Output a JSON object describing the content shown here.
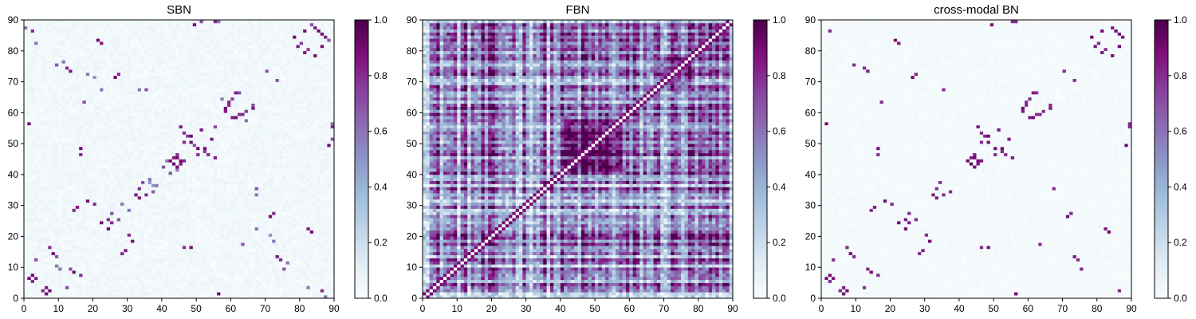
{
  "colormap": {
    "name": "BuPu",
    "stops": [
      [
        0.0,
        "#f7fcfd"
      ],
      [
        0.125,
        "#e0ecf4"
      ],
      [
        0.25,
        "#bfd3e6"
      ],
      [
        0.375,
        "#9ebcda"
      ],
      [
        0.5,
        "#8c96c6"
      ],
      [
        0.625,
        "#8c6bb1"
      ],
      [
        0.75,
        "#88419d"
      ],
      [
        0.875,
        "#810f7c"
      ],
      [
        1.0,
        "#4d004b"
      ]
    ]
  },
  "chart_data": [
    {
      "type": "heatmap",
      "title": "SBN",
      "xlim": [
        0,
        90
      ],
      "ylim": [
        0,
        90
      ],
      "xticks": [
        "0",
        "10",
        "20",
        "30",
        "40",
        "50",
        "60",
        "70",
        "80",
        "90"
      ],
      "yticks": [
        "0",
        "10",
        "20",
        "30",
        "40",
        "50",
        "60",
        "70",
        "80",
        "90"
      ],
      "colorbar": {
        "range": [
          0,
          1
        ],
        "ticks": [
          "0.0",
          "0.2",
          "0.4",
          "0.6",
          "0.8",
          "1.0"
        ]
      },
      "grid_size": 90,
      "pattern": "sparse-symmetric",
      "background_value": 0.02,
      "cells": [
        [
          2,
          7,
          0.9
        ],
        [
          3,
          6,
          0.85
        ],
        [
          5,
          2,
          0.8
        ],
        [
          6,
          1,
          0.9
        ],
        [
          8,
          14,
          0.9
        ],
        [
          9,
          13,
          0.7
        ],
        [
          7,
          16,
          0.8
        ],
        [
          10,
          9,
          0.6
        ],
        [
          12,
          3,
          0.7
        ],
        [
          14,
          28,
          0.8
        ],
        [
          15,
          29,
          0.85
        ],
        [
          16,
          48,
          0.9
        ],
        [
          16,
          46,
          0.8
        ],
        [
          17,
          63,
          0.7
        ],
        [
          18,
          72,
          0.6
        ],
        [
          20,
          71,
          0.5
        ],
        [
          21,
          83,
          0.9
        ],
        [
          22,
          82,
          0.85
        ],
        [
          24,
          22,
          0.9
        ],
        [
          25,
          24,
          0.8
        ],
        [
          27,
          25,
          0.7
        ],
        [
          28,
          30,
          0.6
        ],
        [
          30,
          20,
          0.8
        ],
        [
          31,
          18,
          0.9
        ],
        [
          32,
          33,
          0.85
        ],
        [
          33,
          35,
          0.8
        ],
        [
          34,
          37,
          0.7
        ],
        [
          36,
          38,
          0.6
        ],
        [
          37,
          36,
          0.5
        ],
        [
          40,
          42,
          0.7
        ],
        [
          42,
          44,
          0.9
        ],
        [
          43,
          43,
          0.95
        ],
        [
          44,
          45,
          0.9
        ],
        [
          45,
          43,
          0.85
        ],
        [
          46,
          44,
          0.8
        ],
        [
          44,
          41,
          0.6
        ],
        [
          45,
          55,
          0.85
        ],
        [
          46,
          53,
          0.8
        ],
        [
          47,
          52,
          0.75
        ],
        [
          48,
          50,
          0.9
        ],
        [
          49,
          49,
          0.7
        ],
        [
          50,
          46,
          0.8
        ],
        [
          52,
          48,
          0.9
        ],
        [
          54,
          51,
          0.85
        ],
        [
          55,
          55,
          0.7
        ],
        [
          56,
          1,
          0.9
        ],
        [
          58,
          60,
          0.85
        ],
        [
          59,
          62,
          0.8
        ],
        [
          60,
          64,
          0.75
        ],
        [
          61,
          58,
          0.9
        ],
        [
          62,
          66,
          0.7
        ],
        [
          63,
          59,
          0.8
        ],
        [
          64,
          57,
          0.6
        ],
        [
          66,
          61,
          0.85
        ],
        [
          67,
          22,
          0.6
        ],
        [
          70,
          73,
          0.7
        ],
        [
          71,
          26,
          0.9
        ],
        [
          72,
          27,
          0.8
        ],
        [
          73,
          13,
          0.85
        ],
        [
          74,
          12,
          0.8
        ],
        [
          75,
          9,
          0.7
        ],
        [
          76,
          11,
          0.6
        ],
        [
          78,
          84,
          0.9
        ],
        [
          79,
          81,
          0.85
        ],
        [
          80,
          82,
          0.8
        ],
        [
          81,
          86,
          0.9
        ],
        [
          82,
          80,
          0.75
        ],
        [
          83,
          88,
          0.7
        ],
        [
          84,
          87,
          0.8
        ],
        [
          85,
          86,
          0.6
        ],
        [
          86,
          85,
          0.9
        ],
        [
          87,
          84,
          0.85
        ],
        [
          88,
          49,
          0.9
        ],
        [
          89,
          55,
          0.8
        ],
        [
          89,
          51,
          0.7
        ],
        [
          82,
          3,
          0.6
        ],
        [
          86,
          2,
          0.8
        ],
        [
          87,
          0,
          0.6
        ],
        [
          35,
          67,
          0.7
        ],
        [
          33,
          67,
          0.6
        ],
        [
          56,
          89,
          0.6
        ]
      ]
    },
    {
      "type": "heatmap",
      "title": "FBN",
      "xlim": [
        0,
        90
      ],
      "ylim": [
        0,
        90
      ],
      "xticks": [
        "0",
        "10",
        "20",
        "30",
        "40",
        "50",
        "60",
        "70",
        "80",
        "90"
      ],
      "yticks": [
        "0",
        "10",
        "20",
        "30",
        "40",
        "50",
        "60",
        "70",
        "80",
        "90"
      ],
      "colorbar": {
        "range": [
          0,
          1
        ],
        "ticks": [
          "0.0",
          "0.2",
          "0.4",
          "0.6",
          "0.8",
          "1.0"
        ]
      },
      "grid_size": 90,
      "pattern": "dense-symmetric",
      "diagonal_value": 0.0,
      "off_diagonal_value": 0.9
    },
    {
      "type": "heatmap",
      "title": "cross-modal BN",
      "xlim": [
        0,
        90
      ],
      "ylim": [
        0,
        90
      ],
      "xticks": [
        "0",
        "10",
        "20",
        "30",
        "40",
        "50",
        "60",
        "70",
        "80",
        "90"
      ],
      "yticks": [
        "0",
        "10",
        "20",
        "30",
        "40",
        "50",
        "60",
        "70",
        "80",
        "90"
      ],
      "colorbar": {
        "range": [
          0,
          1
        ],
        "ticks": [
          "0.0",
          "0.2",
          "0.4",
          "0.6",
          "0.8",
          "1.0"
        ]
      },
      "grid_size": 90,
      "pattern": "sparse-symmetric",
      "background_value": 0.01,
      "cells": [
        [
          2,
          7,
          0.9
        ],
        [
          3,
          6,
          0.85
        ],
        [
          5,
          2,
          0.8
        ],
        [
          6,
          1,
          0.9
        ],
        [
          8,
          14,
          0.9
        ],
        [
          9,
          13,
          0.8
        ],
        [
          7,
          16,
          0.8
        ],
        [
          12,
          3,
          0.8
        ],
        [
          14,
          28,
          0.8
        ],
        [
          15,
          29,
          0.85
        ],
        [
          16,
          48,
          0.9
        ],
        [
          16,
          46,
          0.8
        ],
        [
          17,
          63,
          0.8
        ],
        [
          21,
          83,
          0.9
        ],
        [
          22,
          82,
          0.85
        ],
        [
          24,
          22,
          0.9
        ],
        [
          25,
          24,
          0.85
        ],
        [
          27,
          25,
          0.8
        ],
        [
          30,
          20,
          0.8
        ],
        [
          31,
          18,
          0.9
        ],
        [
          32,
          33,
          0.85
        ],
        [
          33,
          35,
          0.8
        ],
        [
          34,
          37,
          0.8
        ],
        [
          42,
          44,
          0.9
        ],
        [
          43,
          43,
          0.95
        ],
        [
          44,
          45,
          0.9
        ],
        [
          45,
          43,
          0.85
        ],
        [
          46,
          44,
          0.85
        ],
        [
          45,
          55,
          0.85
        ],
        [
          46,
          53,
          0.8
        ],
        [
          47,
          52,
          0.8
        ],
        [
          48,
          50,
          0.9
        ],
        [
          50,
          46,
          0.8
        ],
        [
          52,
          48,
          0.9
        ],
        [
          54,
          51,
          0.85
        ],
        [
          56,
          1,
          0.9
        ],
        [
          58,
          60,
          0.85
        ],
        [
          59,
          62,
          0.8
        ],
        [
          60,
          64,
          0.8
        ],
        [
          61,
          58,
          0.9
        ],
        [
          62,
          66,
          0.8
        ],
        [
          63,
          59,
          0.8
        ],
        [
          66,
          61,
          0.85
        ],
        [
          71,
          26,
          0.9
        ],
        [
          72,
          27,
          0.8
        ],
        [
          73,
          13,
          0.85
        ],
        [
          74,
          12,
          0.8
        ],
        [
          75,
          9,
          0.8
        ],
        [
          78,
          84,
          0.9
        ],
        [
          79,
          81,
          0.85
        ],
        [
          80,
          82,
          0.8
        ],
        [
          81,
          86,
          0.9
        ],
        [
          82,
          80,
          0.8
        ],
        [
          84,
          87,
          0.8
        ],
        [
          86,
          85,
          0.9
        ],
        [
          87,
          84,
          0.85
        ],
        [
          88,
          49,
          0.9
        ],
        [
          89,
          55,
          0.8
        ],
        [
          86,
          2,
          0.8
        ],
        [
          35,
          67,
          0.8
        ],
        [
          56,
          89,
          0.8
        ],
        [
          70,
          73,
          0.8
        ]
      ]
    }
  ]
}
